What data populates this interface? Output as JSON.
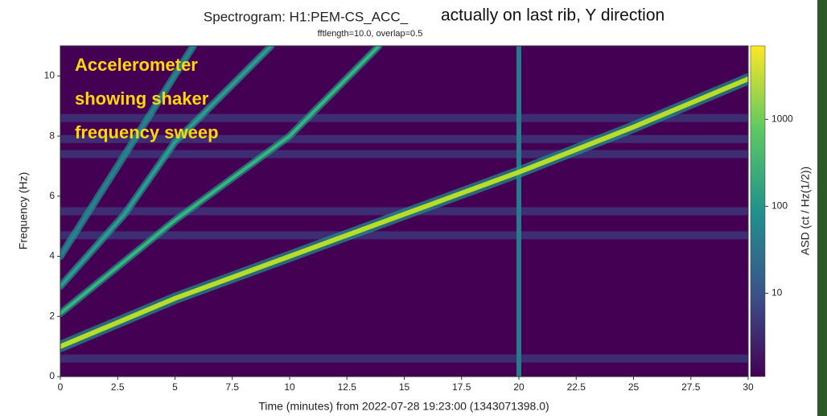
{
  "chart_data": {
    "type": "spectrogram",
    "title": "Spectrogram: H1:PEM-CS_ACC_",
    "subtitle": "fftlength=10.0, overlap=0.5",
    "annotations": [
      "actually on last rib, Y direction"
    ],
    "overlay_lines": [
      "Accelerometer",
      "showing shaker",
      "frequency sweep"
    ],
    "xlabel": "Time (minutes) from 2022-07-28 19:23:00 (1343071398.0)",
    "ylabel": "Frequency (Hz)",
    "colorbar_label": "ASD (ct / Hz(1/2))",
    "xlim": [
      0,
      30
    ],
    "ylim": [
      0,
      11
    ],
    "xticks": [
      0,
      2.5,
      5,
      7.5,
      10,
      12.5,
      15,
      17.5,
      20,
      22.5,
      25,
      27.5,
      30
    ],
    "yticks": [
      0,
      2,
      4,
      6,
      8,
      10
    ],
    "clim": [
      1.1,
      7000
    ],
    "cticks": [
      10,
      100,
      1000
    ],
    "color_scale": "log",
    "background_color": "#440154",
    "series": [
      {
        "color": "#b5de2b",
        "x": [
          0,
          5,
          10,
          15,
          20,
          25,
          30
        ],
        "values": [
          1.0,
          2.6,
          4.0,
          5.4,
          6.8,
          8.3,
          9.9
        ]
      },
      {
        "color": "#35b779",
        "x": [
          0,
          5,
          10,
          13.9
        ],
        "values": [
          2.1,
          5.2,
          8.0,
          11
        ]
      },
      {
        "color": "#2a9d8f",
        "x": [
          0,
          2.8,
          5,
          9.2
        ],
        "values": [
          3.0,
          5.4,
          7.8,
          11
        ]
      },
      {
        "color": "#26828e",
        "x": [
          0,
          2.5,
          5.8
        ],
        "values": [
          4.0,
          7.0,
          11
        ]
      }
    ],
    "line_frequencies": [
      0.6,
      4.7,
      5.5,
      7.4,
      7.9,
      8.6
    ],
    "broadband_times": [
      20
    ]
  }
}
